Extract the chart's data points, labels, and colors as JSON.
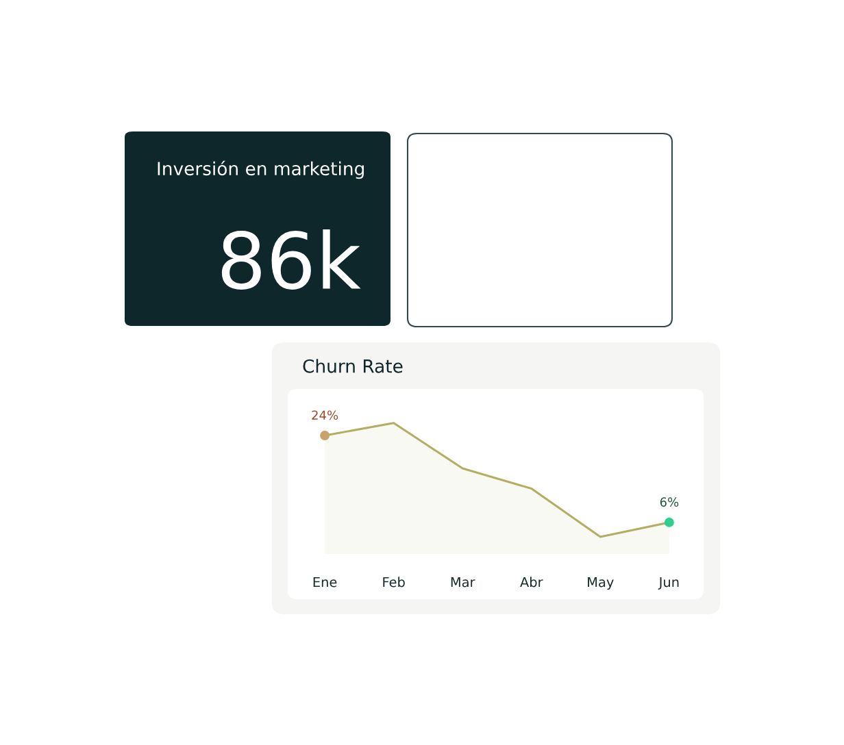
{
  "chart_data": [
    {
      "type": "other",
      "title": "Inversión en marketing",
      "annotations": [
        "86k"
      ]
    },
    {
      "type": "area",
      "title": "Churn Rate",
      "categories": [
        "Ene",
        "Feb",
        "Mar",
        "Abr",
        "May",
        "Jun"
      ],
      "tick_labels": "x",
      "series": [
        {
          "color": "#b3ae62",
          "colors": [
            "#c8a46c",
            null,
            null,
            null,
            null,
            "#2ecf8f"
          ],
          "values": [
            24,
            26.6,
            17.2,
            13,
            3,
            6
          ],
          "value_labels": [
            "24%",
            null,
            null,
            null,
            null,
            "6%"
          ]
        }
      ]
    }
  ]
}
